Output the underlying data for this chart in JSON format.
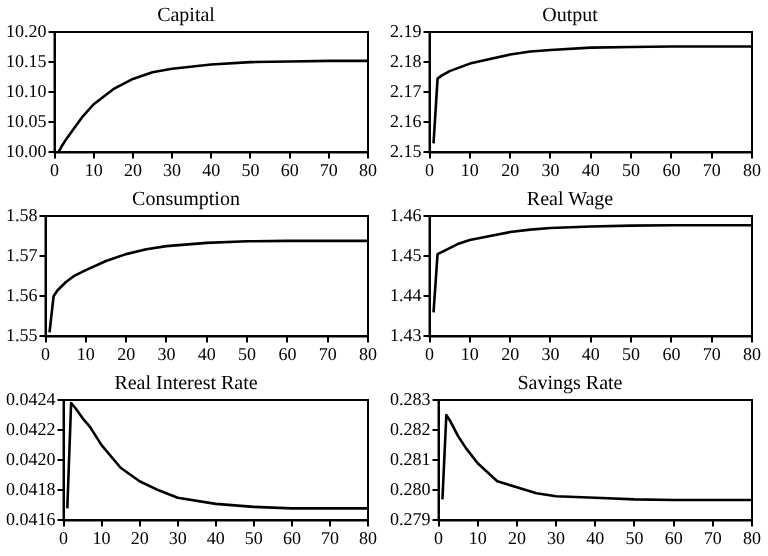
{
  "chart_data": [
    {
      "type": "line",
      "title": "Capital",
      "x": [
        1,
        2,
        3,
        5,
        7,
        10,
        15,
        20,
        25,
        30,
        40,
        50,
        60,
        70,
        80
      ],
      "series": [
        {
          "color": "#000000",
          "values": [
            10.0,
            10.012,
            10.022,
            10.04,
            10.058,
            10.08,
            10.105,
            10.122,
            10.133,
            10.139,
            10.146,
            10.15,
            10.151,
            10.152,
            10.152
          ]
        }
      ],
      "xlim": [
        0,
        80
      ],
      "xticks": [
        0,
        10,
        20,
        30,
        40,
        50,
        60,
        70,
        80
      ],
      "ylim": [
        10.0,
        10.2
      ],
      "yticks": [
        {
          "value": 10.0,
          "label": "10.00"
        },
        {
          "value": 10.05,
          "label": "10.05"
        },
        {
          "value": 10.1,
          "label": "10.10"
        },
        {
          "value": 10.15,
          "label": "10.15"
        },
        {
          "value": 10.2,
          "label": "10.20"
        }
      ],
      "grid": false,
      "legend": false,
      "marker": "none",
      "line_style": "solid"
    },
    {
      "type": "line",
      "title": "Output",
      "x": [
        1,
        2,
        3,
        5,
        7,
        10,
        15,
        20,
        25,
        30,
        40,
        50,
        60,
        70,
        80
      ],
      "series": [
        {
          "color": "#000000",
          "values": [
            2.153,
            2.1745,
            2.1755,
            2.177,
            2.178,
            2.1795,
            2.181,
            2.1825,
            2.1835,
            2.184,
            2.1848,
            2.185,
            2.1852,
            2.1852,
            2.1852
          ]
        }
      ],
      "xlim": [
        0,
        80
      ],
      "xticks": [
        0,
        10,
        20,
        30,
        40,
        50,
        60,
        70,
        80
      ],
      "ylim": [
        2.15,
        2.19
      ],
      "yticks": [
        {
          "value": 2.15,
          "label": "2.15"
        },
        {
          "value": 2.16,
          "label": "2.16"
        },
        {
          "value": 2.17,
          "label": "2.17"
        },
        {
          "value": 2.18,
          "label": "2.18"
        },
        {
          "value": 2.19,
          "label": "2.19"
        }
      ],
      "grid": false,
      "legend": false,
      "marker": "none",
      "line_style": "solid"
    },
    {
      "type": "line",
      "title": "Consumption",
      "x": [
        1,
        2,
        3,
        5,
        7,
        10,
        15,
        20,
        25,
        30,
        40,
        50,
        60,
        70,
        80
      ],
      "series": [
        {
          "color": "#000000",
          "values": [
            1.551,
            1.56,
            1.5615,
            1.5635,
            1.565,
            1.5665,
            1.5688,
            1.5705,
            1.5717,
            1.5725,
            1.5733,
            1.5737,
            1.5738,
            1.5738,
            1.5738
          ]
        }
      ],
      "xlim": [
        0,
        80
      ],
      "xticks": [
        0,
        10,
        20,
        30,
        40,
        50,
        60,
        70,
        80
      ],
      "ylim": [
        1.55,
        1.58
      ],
      "yticks": [
        {
          "value": 1.55,
          "label": "1.55"
        },
        {
          "value": 1.56,
          "label": "1.56"
        },
        {
          "value": 1.57,
          "label": "1.57"
        },
        {
          "value": 1.58,
          "label": "1.58"
        }
      ],
      "grid": false,
      "legend": false,
      "marker": "none",
      "line_style": "solid"
    },
    {
      "type": "line",
      "title": "Real Wage",
      "x": [
        1,
        2,
        3,
        5,
        7,
        10,
        15,
        20,
        25,
        30,
        40,
        50,
        60,
        70,
        80
      ],
      "series": [
        {
          "color": "#000000",
          "values": [
            1.436,
            1.4505,
            1.451,
            1.452,
            1.453,
            1.454,
            1.455,
            1.456,
            1.4566,
            1.457,
            1.4574,
            1.4576,
            1.4577,
            1.4577,
            1.4577
          ]
        }
      ],
      "xlim": [
        0,
        80
      ],
      "xticks": [
        0,
        10,
        20,
        30,
        40,
        50,
        60,
        70,
        80
      ],
      "ylim": [
        1.43,
        1.46
      ],
      "yticks": [
        {
          "value": 1.43,
          "label": "1.43"
        },
        {
          "value": 1.44,
          "label": "1.44"
        },
        {
          "value": 1.45,
          "label": "1.45"
        },
        {
          "value": 1.46,
          "label": "1.46"
        }
      ],
      "grid": false,
      "legend": false,
      "marker": "none",
      "line_style": "solid"
    },
    {
      "type": "line",
      "title": "Real Interest Rate",
      "x": [
        1,
        2,
        3,
        5,
        7,
        10,
        15,
        20,
        25,
        30,
        40,
        50,
        60,
        70,
        80
      ],
      "series": [
        {
          "color": "#000000",
          "values": [
            0.04168,
            0.04238,
            0.04235,
            0.04228,
            0.04222,
            0.0421,
            0.04195,
            0.04186,
            0.0418,
            0.04175,
            0.04171,
            0.04169,
            0.04168,
            0.04168,
            0.04168
          ]
        }
      ],
      "xlim": [
        0,
        80
      ],
      "xticks": [
        0,
        10,
        20,
        30,
        40,
        50,
        60,
        70,
        80
      ],
      "ylim": [
        0.0416,
        0.0424
      ],
      "yticks": [
        {
          "value": 0.0416,
          "label": "0.0416"
        },
        {
          "value": 0.0418,
          "label": "0.0418"
        },
        {
          "value": 0.042,
          "label": "0.0420"
        },
        {
          "value": 0.0422,
          "label": "0.0422"
        },
        {
          "value": 0.0424,
          "label": "0.0424"
        }
      ],
      "grid": false,
      "legend": false,
      "marker": "none",
      "line_style": "solid"
    },
    {
      "type": "line",
      "title": "Savings Rate",
      "x": [
        1,
        2,
        3,
        5,
        7,
        10,
        15,
        20,
        25,
        30,
        40,
        50,
        60,
        70,
        80
      ],
      "series": [
        {
          "color": "#000000",
          "values": [
            0.2797,
            0.2825,
            0.2823,
            0.2818,
            0.2814,
            0.2809,
            0.2803,
            0.2801,
            0.2799,
            0.2798,
            0.27975,
            0.2797,
            0.27968,
            0.27968,
            0.27968
          ]
        }
      ],
      "xlim": [
        0,
        80
      ],
      "xticks": [
        0,
        10,
        20,
        30,
        40,
        50,
        60,
        70,
        80
      ],
      "ylim": [
        0.279,
        0.283
      ],
      "yticks": [
        {
          "value": 0.279,
          "label": "0.279"
        },
        {
          "value": 0.28,
          "label": "0.280"
        },
        {
          "value": 0.281,
          "label": "0.281"
        },
        {
          "value": 0.282,
          "label": "0.282"
        },
        {
          "value": 0.283,
          "label": "0.283"
        }
      ],
      "grid": false,
      "legend": false,
      "marker": "none",
      "line_style": "solid"
    }
  ]
}
